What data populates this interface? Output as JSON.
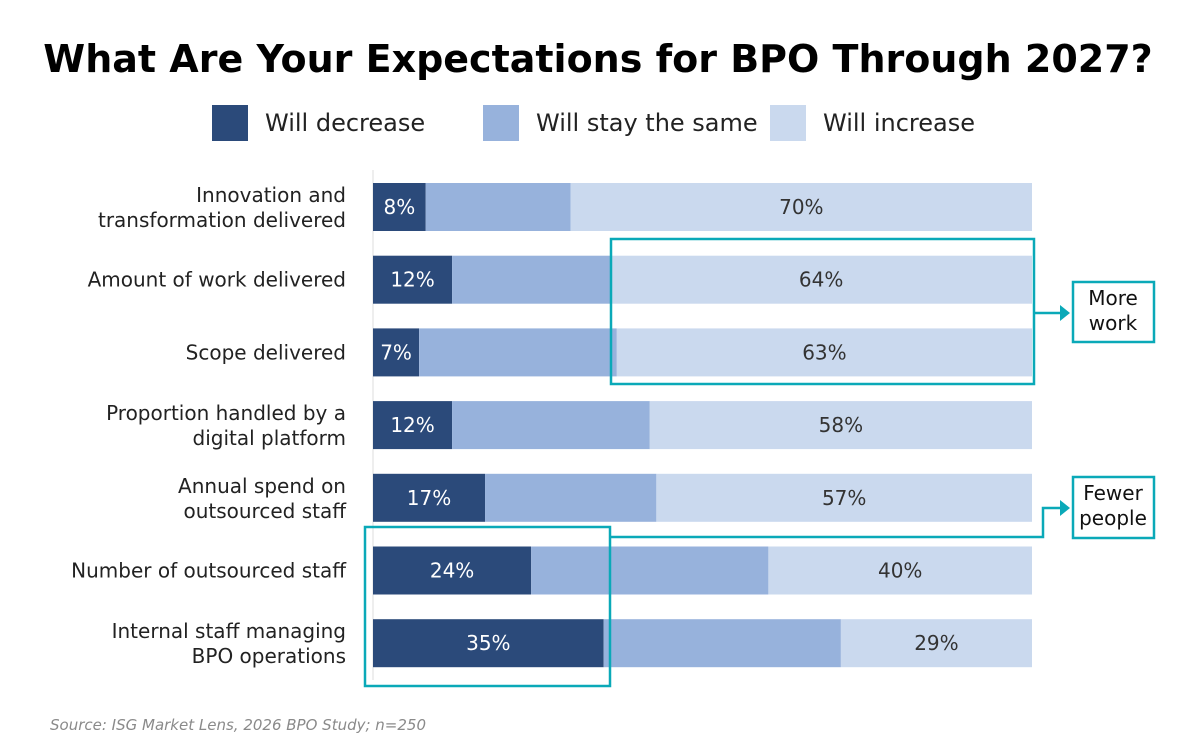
{
  "chart_data": {
    "type": "bar",
    "orientation": "horizontal",
    "stacked": true,
    "title": "What Are Your Expectations for BPO Through 2027?",
    "categories": [
      [
        "Innovation and",
        "transformation delivered"
      ],
      [
        "Amount of work delivered"
      ],
      [
        "Scope delivered"
      ],
      [
        "Proportion handled by a",
        "digital platform"
      ],
      [
        "Annual spend on",
        "outsourced staff"
      ],
      [
        "Number of outsourced staff"
      ],
      [
        "Internal staff managing",
        "BPO operations"
      ]
    ],
    "series": [
      {
        "name": "Will decrease",
        "color": "#2b4a7a",
        "values": [
          8,
          12,
          7,
          12,
          17,
          24,
          35
        ],
        "labels": [
          "8%",
          "12%",
          "7%",
          "12%",
          "17%",
          "24%",
          "35%"
        ]
      },
      {
        "name": "Will stay the same",
        "color": "#97b2dc",
        "values": [
          22,
          24,
          30,
          30,
          26,
          36,
          36
        ]
      },
      {
        "name": "Will increase",
        "color": "#cad9ee",
        "values": [
          70,
          64,
          63,
          58,
          57,
          40,
          29
        ],
        "labels": [
          "70%",
          "64%",
          "63%",
          "58%",
          "57%",
          "40%",
          "29%"
        ]
      }
    ],
    "xlim": [
      0,
      100
    ],
    "legend": "top",
    "grid": false,
    "annotations": [
      {
        "text": [
          "More",
          "work"
        ],
        "highlights": [
          "Amount of work delivered",
          "Scope delivered"
        ],
        "series": "Will increase"
      },
      {
        "text": [
          "Fewer",
          "people"
        ],
        "highlights": [
          "Number of outsourced staff",
          "Internal staff managing BPO operations"
        ],
        "series": "Will decrease"
      }
    ],
    "accent_color": "#0aa9b8",
    "source": "Source: ISG Market Lens, 2026 BPO Study; n=250"
  }
}
